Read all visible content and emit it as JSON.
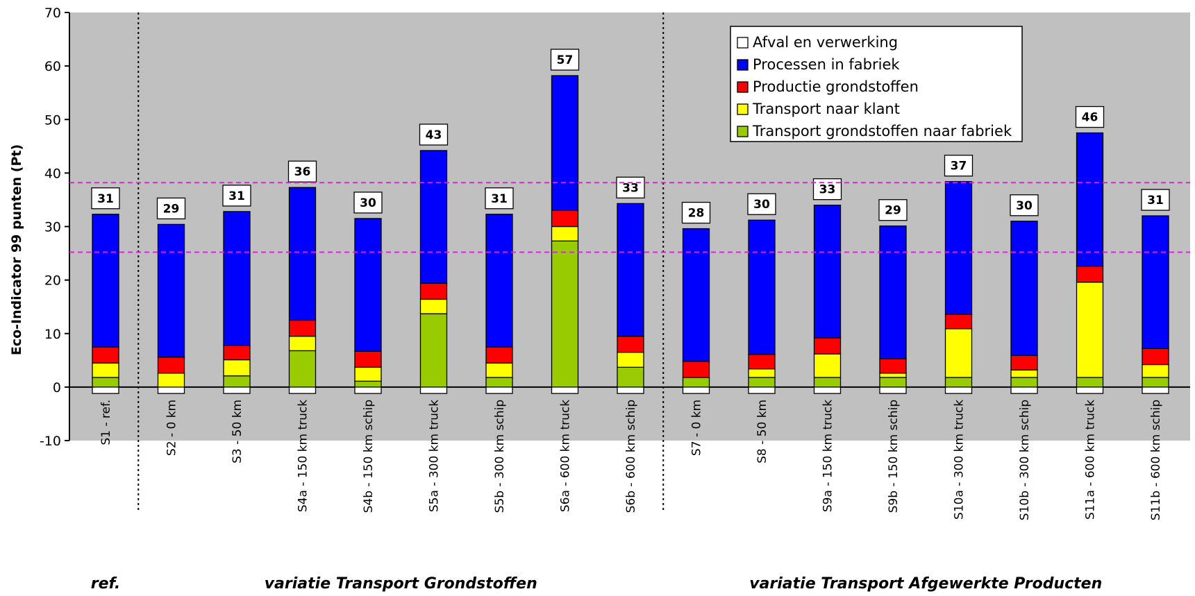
{
  "chart_data": {
    "type": "bar",
    "stacked": true,
    "ylabel": "Eco-Indicator 99 punten (Pt)",
    "xlabel": "",
    "ylim": [
      -10,
      70
    ],
    "yticks": [
      -10,
      0,
      10,
      20,
      30,
      40,
      50,
      60,
      70
    ],
    "grid": false,
    "legend_position": "top-right",
    "plot_background": "#c0c0c0",
    "reference_lines": [
      {
        "y": 25.2,
        "color": "#e020e0",
        "style": "dashed"
      },
      {
        "y": 38.2,
        "color": "#e020e0",
        "style": "dashed"
      }
    ],
    "categories": [
      "S1 - ref.",
      "S2 - 0 km",
      "S3 - 50 km",
      "S4a - 150 km truck",
      "S4b - 150 km schip",
      "S5a - 300 km truck",
      "S5b - 300 km schip",
      "S6a - 600 km truck",
      "S6b - 600 km schip",
      "S7 - 0 km",
      "S8 - 50 km",
      "S9a - 150 km truck",
      "S9b - 150 km schip",
      "S10a - 300 km truck",
      "S10b - 300 km schip",
      "S11a - 600 km truck",
      "S11b - 600 km schip"
    ],
    "series": [
      {
        "name": "Afval en verwerking",
        "color": "#ffffff",
        "values": [
          -1.2,
          -1.2,
          -1.2,
          -1.2,
          -1.2,
          -1.2,
          -1.2,
          -1.2,
          -1.2,
          -1.2,
          -1.2,
          -1.2,
          -1.2,
          -1.2,
          -1.2,
          -1.2,
          -1.2
        ]
      },
      {
        "name": "Transport grondstoffen naar fabriek",
        "color": "#99cc00",
        "values": [
          1.8,
          0,
          2.1,
          6.8,
          1.1,
          13.7,
          1.8,
          27.3,
          3.7,
          1.8,
          1.8,
          1.8,
          1.8,
          1.8,
          1.8,
          1.8,
          1.8
        ]
      },
      {
        "name": "Transport naar klant",
        "color": "#ffff00",
        "values": [
          2.7,
          2.6,
          3.0,
          2.7,
          2.6,
          2.7,
          2.7,
          2.7,
          2.8,
          0,
          1.6,
          4.4,
          0.8,
          9.1,
          1.4,
          17.8,
          2.4
        ]
      },
      {
        "name": "Productie grondstoffen",
        "color": "#ff0000",
        "values": [
          3.0,
          3.0,
          2.7,
          3.0,
          3.0,
          3.0,
          3.0,
          3.0,
          3.0,
          3.0,
          2.7,
          3.0,
          2.7,
          2.7,
          2.7,
          3.0,
          3.0
        ]
      },
      {
        "name": "Processen in fabriek",
        "color": "#0000ff",
        "values": [
          24.8,
          24.8,
          25.0,
          24.8,
          24.8,
          24.8,
          24.8,
          25.2,
          24.8,
          24.8,
          25.1,
          24.8,
          24.8,
          24.8,
          25.1,
          24.9,
          24.8
        ]
      }
    ],
    "totals": [
      31,
      29,
      31,
      36,
      30,
      43,
      31,
      57,
      33,
      28,
      30,
      33,
      29,
      37,
      30,
      46,
      31
    ],
    "groups": [
      {
        "label": "ref.",
        "from": 0,
        "to": 0
      },
      {
        "label": "variatie Transport Grondstoffen",
        "from": 1,
        "to": 8
      },
      {
        "label": "variatie Transport Afgewerkte Producten",
        "from": 9,
        "to": 16
      }
    ],
    "legend_order": [
      "Afval en verwerking",
      "Processen in fabriek",
      "Productie grondstoffen",
      "Transport naar klant",
      "Transport grondstoffen naar fabriek"
    ]
  }
}
